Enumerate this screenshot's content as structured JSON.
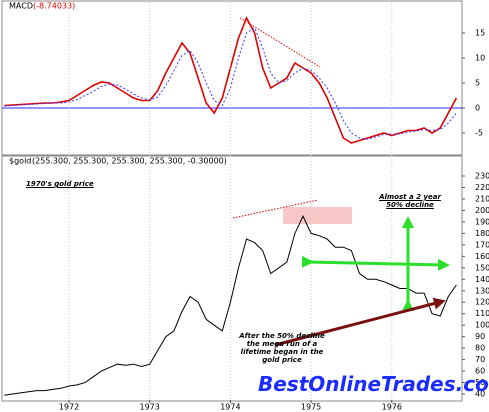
{
  "chart_data": [
    {
      "type": "line",
      "title": "MACD",
      "subtitle": "(-8.74033)",
      "xlim": [
        1971.17,
        1976.87
      ],
      "ylim": [
        -9,
        19.2
      ],
      "yticks": [
        -5,
        0,
        5,
        10,
        15
      ],
      "hlines": [
        0
      ],
      "hline_color": "#2a2aff",
      "x": [
        1971.2,
        1971.3,
        1971.4,
        1971.5,
        1971.6,
        1971.7,
        1971.8,
        1971.9,
        1972.0,
        1972.1,
        1972.2,
        1972.3,
        1972.4,
        1972.5,
        1972.6,
        1972.7,
        1972.8,
        1972.9,
        1973.0,
        1973.1,
        1973.2,
        1973.3,
        1973.4,
        1973.5,
        1973.6,
        1973.7,
        1973.8,
        1973.9,
        1974.0,
        1974.1,
        1974.2,
        1974.3,
        1974.4,
        1974.5,
        1974.6,
        1974.7,
        1974.8,
        1974.9,
        1975.0,
        1975.1,
        1975.2,
        1975.3,
        1975.4,
        1975.5,
        1975.6,
        1975.7,
        1975.8,
        1975.9,
        1976.0,
        1976.1,
        1976.2,
        1976.3,
        1976.4,
        1976.5,
        1976.6,
        1976.7,
        1976.8
      ],
      "series": [
        {
          "color": "#e00000",
          "dashed": false,
          "values": [
            0.5,
            0.6,
            0.7,
            0.8,
            0.9,
            1.0,
            1.0,
            1.2,
            1.5,
            2.5,
            3.5,
            4.5,
            5.2,
            5.0,
            4.0,
            3.0,
            2.0,
            1.5,
            1.5,
            3.5,
            7,
            10,
            13,
            11,
            6,
            1,
            -1,
            2,
            8,
            14,
            18,
            15,
            8,
            4,
            5,
            6,
            9,
            8,
            7,
            5,
            2,
            -2,
            -6,
            -7,
            -6.5,
            -6,
            -5.5,
            -5,
            -5.5,
            -5,
            -4.5,
            -4.5,
            -4,
            -5,
            -4,
            -1,
            2
          ]
        },
        {
          "color": "#3a3aff",
          "dashed": true,
          "values": [
            0.4,
            0.5,
            0.6,
            0.7,
            0.8,
            0.9,
            1.0,
            1.0,
            1.2,
            1.7,
            2.5,
            3.3,
            4.3,
            4.8,
            4.6,
            3.8,
            2.8,
            2.0,
            1.6,
            2.2,
            4.5,
            7.5,
            10.5,
            11.5,
            9,
            5,
            1.5,
            0.5,
            4,
            10,
            15,
            16,
            12,
            7,
            5,
            5.5,
            7,
            8,
            7.5,
            6,
            4,
            1,
            -2.5,
            -5,
            -6,
            -6.2,
            -5.8,
            -5.3,
            -5.2,
            -5.2,
            -4.8,
            -4.6,
            -4.3,
            -4.5,
            -4.3,
            -3,
            -1
          ]
        }
      ]
    },
    {
      "type": "line",
      "title": "$gold",
      "subtitle": "(255.300, 255.300, 255.300, 255.300, -0.30000)",
      "xlim": [
        1971.17,
        1976.87
      ],
      "ylim": [
        34.8,
        239.6
      ],
      "grid": true,
      "xticks": [
        1972,
        1973,
        1974,
        1975,
        1976
      ],
      "yticks": [
        40,
        50,
        60,
        70,
        80,
        90,
        100,
        110,
        120,
        130,
        140,
        150,
        160,
        170,
        180,
        190,
        200,
        210,
        220,
        230
      ],
      "x": [
        1971.2,
        1971.3,
        1971.4,
        1971.5,
        1971.6,
        1971.7,
        1971.8,
        1971.9,
        1972.0,
        1972.1,
        1972.2,
        1972.3,
        1972.4,
        1972.5,
        1972.6,
        1972.7,
        1972.8,
        1972.9,
        1973.0,
        1973.1,
        1973.2,
        1973.3,
        1973.4,
        1973.5,
        1973.6,
        1973.7,
        1973.8,
        1973.9,
        1974.0,
        1974.1,
        1974.2,
        1974.3,
        1974.4,
        1974.5,
        1974.6,
        1974.7,
        1974.8,
        1974.9,
        1975.0,
        1975.1,
        1975.2,
        1975.3,
        1975.4,
        1975.5,
        1975.6,
        1975.7,
        1975.8,
        1975.9,
        1976.0,
        1976.1,
        1976.2,
        1976.3,
        1976.4,
        1976.5,
        1976.6,
        1976.7,
        1976.8
      ],
      "series": [
        {
          "color": "#000000",
          "dashed": false,
          "values": [
            39,
            40,
            41,
            42,
            43,
            43,
            44,
            45,
            47,
            48,
            50,
            55,
            60,
            63,
            66,
            65,
            66,
            64,
            66,
            78,
            90,
            95,
            112,
            125,
            120,
            105,
            100,
            95,
            120,
            150,
            175,
            172,
            165,
            145,
            150,
            155,
            180,
            195,
            180,
            178,
            175,
            168,
            168,
            165,
            145,
            140,
            140,
            138,
            135,
            132,
            132,
            128,
            128,
            110,
            108,
            125,
            135
          ]
        }
      ],
      "annotations": [
        "1970's gold price",
        "Almost a 2 year 50% decline",
        "After the 50% decline the mega run of a lifetime began in the gold price"
      ],
      "watermark": "BestOnlineTrades.com"
    }
  ]
}
